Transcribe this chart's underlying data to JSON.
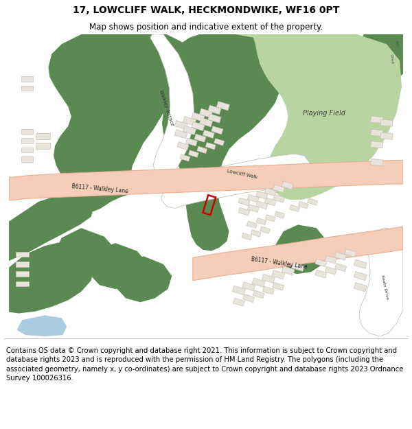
{
  "title_line1": "17, LOWCLIFF WALK, HECKMONDWIKE, WF16 0PT",
  "title_line2": "Map shows position and indicative extent of the property.",
  "title_fontsize": 10,
  "subtitle_fontsize": 8.5,
  "footer_text": "Contains OS data © Crown copyright and database right 2021. This information is subject to Crown copyright and database rights 2023 and is reproduced with the permission of HM Land Registry. The polygons (including the associated geometry, namely x, y co-ordinates) are subject to Crown copyright and database rights 2023 Ordnance Survey 100026316.",
  "footer_fontsize": 7.2,
  "map_bg": "#f2f0eb",
  "dark_green": "#5a8a52",
  "light_green": "#b8d4a0",
  "road_fill": "#f5cdb8",
  "road_edge": "#e8b090",
  "building_fill": "#e8e4dc",
  "building_edge": "#c8c4b8",
  "highlight_color": "#cc0000",
  "water_color": "#aacce0",
  "text_color": "#404040",
  "white": "#ffffff"
}
